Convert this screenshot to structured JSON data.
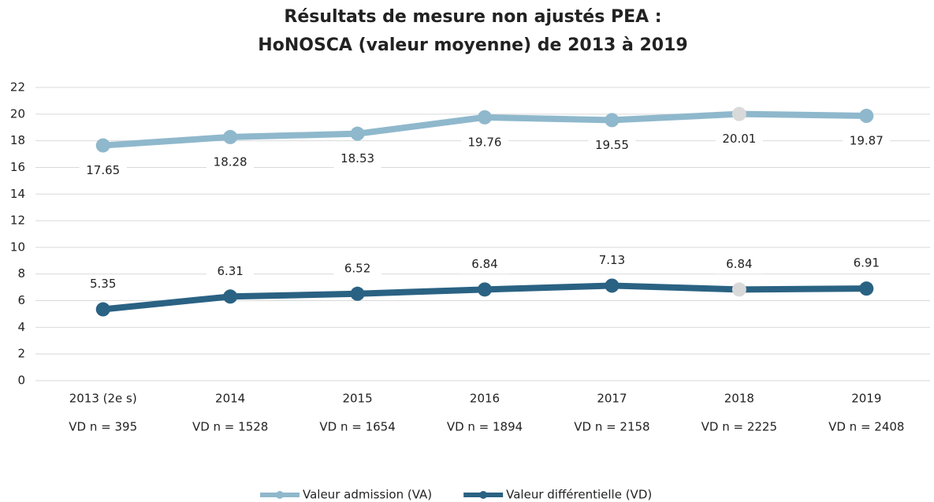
{
  "chart_data": {
    "type": "line",
    "title": [
      "Résultats de mesure non ajustés PEA :",
      "HoNOSCA (valeur moyenne) de 2013 à 2019"
    ],
    "categories": [
      "2013 (2e s)",
      "2014",
      "2015",
      "2016",
      "2017",
      "2018",
      "2019"
    ],
    "category_counts": [
      "VD n = 395",
      "VD n = 1528",
      "VD n = 1654",
      "VD n = 1894",
      "VD n = 2158",
      "VD n = 2225",
      "VD n = 2408"
    ],
    "series": [
      {
        "name": "Valeur admission (VA)",
        "color": "#8fb8cc",
        "label_position": "below",
        "values": [
          17.65,
          18.28,
          18.53,
          19.76,
          19.55,
          20.01,
          19.87
        ],
        "highlight": {
          "index": 5,
          "color": "#d9d9d9"
        }
      },
      {
        "name": "Valeur différentielle (VD)",
        "color": "#2a6283",
        "label_position": "above",
        "values": [
          5.35,
          6.31,
          6.52,
          6.84,
          7.13,
          6.84,
          6.91
        ],
        "highlight": {
          "index": 5,
          "color": "#d9d9d9"
        }
      }
    ],
    "ylim": [
      0,
      22
    ],
    "yticks": [
      0,
      2,
      4,
      6,
      8,
      10,
      12,
      14,
      16,
      18,
      20,
      22
    ],
    "grid": true,
    "legend": "bottom"
  }
}
